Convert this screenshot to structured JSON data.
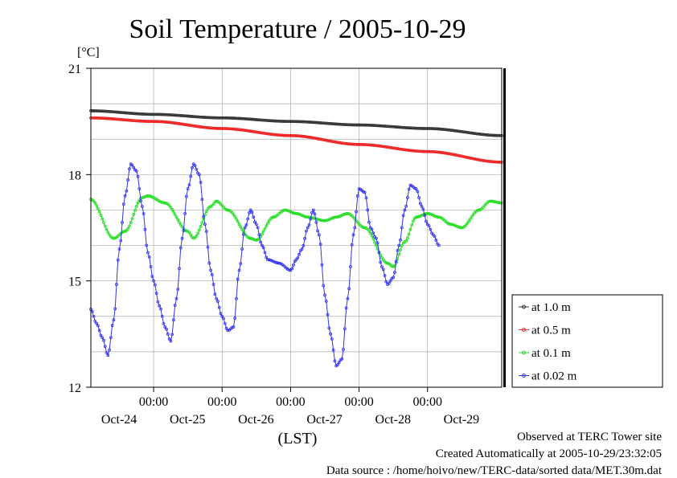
{
  "chart_data": {
    "type": "line",
    "title": "Soil Temperature / 2005-10-29",
    "ylabel": "[°C]",
    "xlabel": "(LST)",
    "ylim": [
      12,
      21
    ],
    "yticks": [
      "12",
      "15",
      "18",
      "21"
    ],
    "time_range_hours": [
      -22,
      122
    ],
    "xticks": [
      {
        "hour": 0,
        "time": "00:00",
        "date": "Oct-24"
      },
      {
        "hour": 24,
        "time": "00:00",
        "date": "Oct-25"
      },
      {
        "hour": 48,
        "time": "00:00",
        "date": "Oct-26"
      },
      {
        "hour": 72,
        "time": "00:00",
        "date": "Oct-27"
      },
      {
        "hour": 96,
        "time": "00:00",
        "date": "Oct-28"
      },
      {
        "hour": 120,
        "time": "",
        "date": "Oct-29"
      }
    ],
    "grid": true,
    "legend_position": "right",
    "series": [
      {
        "name": "at 1.0 m",
        "color": "#333333",
        "points": [
          [
            -22,
            19.8
          ],
          [
            0,
            19.7
          ],
          [
            24,
            19.6
          ],
          [
            48,
            19.5
          ],
          [
            72,
            19.4
          ],
          [
            96,
            19.3
          ],
          [
            122,
            19.1
          ]
        ]
      },
      {
        "name": "at 0.5 m",
        "color": "#ee2222",
        "points": [
          [
            -22,
            19.6
          ],
          [
            0,
            19.5
          ],
          [
            24,
            19.3
          ],
          [
            48,
            19.1
          ],
          [
            72,
            18.85
          ],
          [
            96,
            18.65
          ],
          [
            122,
            18.35
          ]
        ]
      },
      {
        "name": "at 0.1 m",
        "color": "#22dd22",
        "points": [
          [
            -22,
            17.3
          ],
          [
            -14,
            16.2
          ],
          [
            -10,
            16.4
          ],
          [
            -4,
            17.35
          ],
          [
            -2,
            17.4
          ],
          [
            4,
            17.2
          ],
          [
            12,
            16.4
          ],
          [
            14,
            16.2
          ],
          [
            20,
            17.1
          ],
          [
            22,
            17.25
          ],
          [
            26,
            17.0
          ],
          [
            34,
            16.2
          ],
          [
            36,
            16.15
          ],
          [
            42,
            16.8
          ],
          [
            46,
            17.0
          ],
          [
            50,
            16.9
          ],
          [
            54,
            16.8
          ],
          [
            60,
            16.7
          ],
          [
            64,
            16.8
          ],
          [
            68,
            16.9
          ],
          [
            74,
            16.5
          ],
          [
            82,
            15.5
          ],
          [
            84,
            15.4
          ],
          [
            88,
            16.1
          ],
          [
            92,
            16.8
          ],
          [
            96,
            16.9
          ],
          [
            100,
            16.8
          ],
          [
            104,
            16.6
          ],
          [
            108,
            16.5
          ],
          [
            114,
            17.0
          ],
          [
            118,
            17.25
          ],
          [
            122,
            17.2
          ]
        ]
      },
      {
        "name": "at 0.02 m",
        "color": "#3333ee",
        "points": [
          [
            -22,
            14.2
          ],
          [
            -20,
            13.8
          ],
          [
            -18,
            13.4
          ],
          [
            -16,
            12.9
          ],
          [
            -14,
            13.9
          ],
          [
            -12,
            15.9
          ],
          [
            -10,
            17.4
          ],
          [
            -8,
            18.3
          ],
          [
            -6,
            18.1
          ],
          [
            -4,
            17.1
          ],
          [
            -2,
            15.8
          ],
          [
            0,
            15.0
          ],
          [
            2,
            14.3
          ],
          [
            4,
            13.7
          ],
          [
            6,
            13.3
          ],
          [
            8,
            14.5
          ],
          [
            10,
            16.2
          ],
          [
            12,
            17.6
          ],
          [
            14,
            18.3
          ],
          [
            16,
            18.0
          ],
          [
            18,
            16.6
          ],
          [
            20,
            15.3
          ],
          [
            22,
            14.5
          ],
          [
            24,
            14.0
          ],
          [
            26,
            13.6
          ],
          [
            28,
            13.7
          ],
          [
            30,
            15.3
          ],
          [
            32,
            16.5
          ],
          [
            34,
            17.0
          ],
          [
            36,
            16.6
          ],
          [
            38,
            16.0
          ],
          [
            40,
            15.6
          ],
          [
            44,
            15.5
          ],
          [
            48,
            15.3
          ],
          [
            50,
            15.6
          ],
          [
            52,
            15.9
          ],
          [
            54,
            16.5
          ],
          [
            56,
            17.0
          ],
          [
            58,
            16.3
          ],
          [
            60,
            14.6
          ],
          [
            62,
            13.5
          ],
          [
            64,
            12.6
          ],
          [
            66,
            12.8
          ],
          [
            68,
            14.5
          ],
          [
            70,
            16.3
          ],
          [
            72,
            17.6
          ],
          [
            74,
            17.5
          ],
          [
            76,
            16.5
          ],
          [
            78,
            16.2
          ],
          [
            80,
            15.4
          ],
          [
            82,
            14.9
          ],
          [
            84,
            15.1
          ],
          [
            86,
            16.0
          ],
          [
            88,
            17.0
          ],
          [
            90,
            17.7
          ],
          [
            92,
            17.6
          ],
          [
            94,
            17.1
          ],
          [
            96,
            16.6
          ],
          [
            98,
            16.3
          ],
          [
            100,
            16.0
          ]
        ]
      }
    ]
  },
  "footer": {
    "observed": "Observed at TERC Tower site",
    "created": "Created Automatically at 2005-10-29/23:32:05",
    "source": "Data source : /home/hoivo/new/TERC-data/sorted  data/MET.30m.dat"
  }
}
